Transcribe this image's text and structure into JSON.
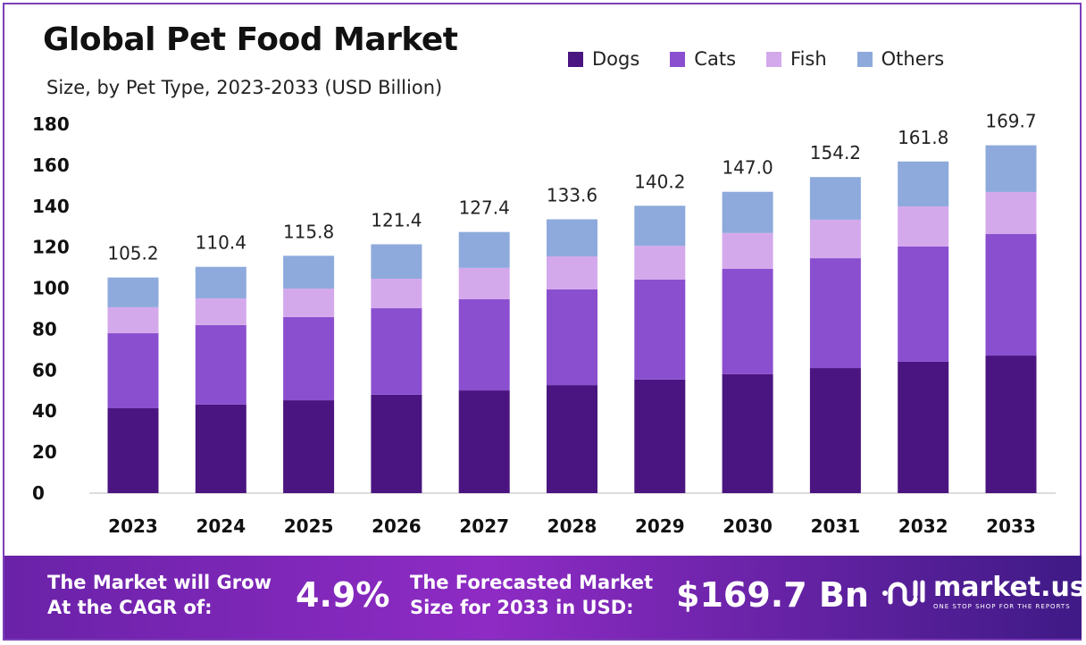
{
  "chart_data": {
    "type": "bar",
    "stacked": true,
    "title": "Global Pet Food Market",
    "subtitle": "Size, by Pet Type, 2023-2033 (USD Billion)",
    "xlabel": "",
    "ylabel": "",
    "ylim": [
      0,
      180
    ],
    "yticks": [
      0,
      20,
      40,
      60,
      80,
      100,
      120,
      140,
      160,
      180
    ],
    "grid": false,
    "legend_position": "top-right",
    "categories": [
      "2023",
      "2024",
      "2025",
      "2026",
      "2027",
      "2028",
      "2029",
      "2030",
      "2031",
      "2032",
      "2033"
    ],
    "series": [
      {
        "name": "Dogs",
        "color": "#4a1580",
        "values": [
          41.4,
          43.2,
          45.3,
          48.0,
          50.1,
          52.7,
          55.4,
          58.0,
          61.0,
          64.1,
          67.1
        ]
      },
      {
        "name": "Cats",
        "color": "#8a4fcf",
        "values": [
          36.6,
          38.8,
          40.6,
          42.2,
          44.5,
          46.7,
          48.8,
          51.4,
          53.6,
          56.2,
          59.3
        ]
      },
      {
        "name": "Fish",
        "color": "#d4a9ec",
        "values": [
          12.7,
          13.0,
          13.9,
          14.4,
          15.3,
          16.1,
          16.5,
          17.5,
          18.8,
          19.6,
          20.5
        ]
      },
      {
        "name": "Others",
        "color": "#8eaadc",
        "values": [
          14.5,
          15.4,
          16.0,
          16.8,
          17.5,
          18.1,
          19.5,
          20.1,
          20.8,
          21.9,
          22.8
        ]
      }
    ],
    "totals": [
      "105.2",
      "110.4",
      "115.8",
      "121.4",
      "127.4",
      "133.6",
      "140.2",
      "147.0",
      "154.2",
      "161.8",
      "169.7"
    ]
  },
  "footer": {
    "cagr_label": "The Market will Grow At the CAGR of:",
    "cagr_value": "4.9%",
    "forecast_label": "The Forecasted Market Size for 2033 in USD:",
    "forecast_value": "$169.7 Bn",
    "logo_name": "market.us",
    "logo_tagline": "ONE STOP SHOP FOR THE REPORTS"
  }
}
